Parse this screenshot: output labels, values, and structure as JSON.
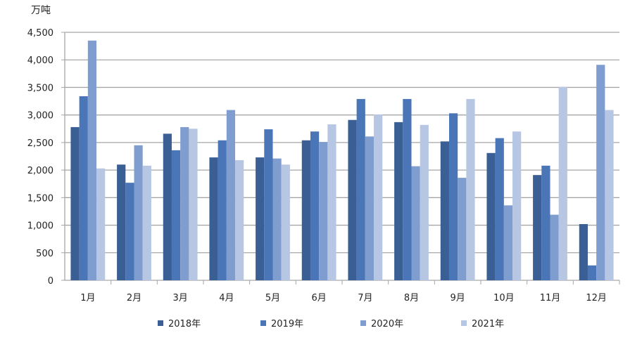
{
  "chart_data": {
    "type": "bar",
    "unit_label": "万吨",
    "categories": [
      "1月",
      "2月",
      "3月",
      "4月",
      "5月",
      "6月",
      "7月",
      "8月",
      "9月",
      "10月",
      "11月",
      "12月"
    ],
    "series": [
      {
        "name": "2018年",
        "color": "#3a5f94",
        "values": [
          2780,
          2100,
          2660,
          2230,
          2230,
          2540,
          2910,
          2870,
          2520,
          2310,
          1910,
          1020
        ]
      },
      {
        "name": "2019年",
        "color": "#4a76b8",
        "values": [
          3340,
          1770,
          2360,
          2540,
          2740,
          2700,
          3290,
          3290,
          3030,
          2580,
          2080,
          270
        ]
      },
      {
        "name": "2020年",
        "color": "#7f9dcf",
        "values": [
          4350,
          2450,
          2780,
          3090,
          2210,
          2510,
          2610,
          2070,
          1860,
          1360,
          1190,
          3910
        ]
      },
      {
        "name": "2021年",
        "color": "#b7c6e3",
        "values": [
          2030,
          2080,
          2750,
          2180,
          2100,
          2830,
          3010,
          2820,
          3290,
          2700,
          3510,
          3090
        ]
      }
    ],
    "yticks": [
      "0",
      "500",
      "1,000",
      "1,500",
      "2,000",
      "2,500",
      "3,000",
      "3,500",
      "4,000",
      "4,500"
    ],
    "ylim": [
      0,
      4500
    ],
    "grid": true,
    "legend": "bottom"
  }
}
